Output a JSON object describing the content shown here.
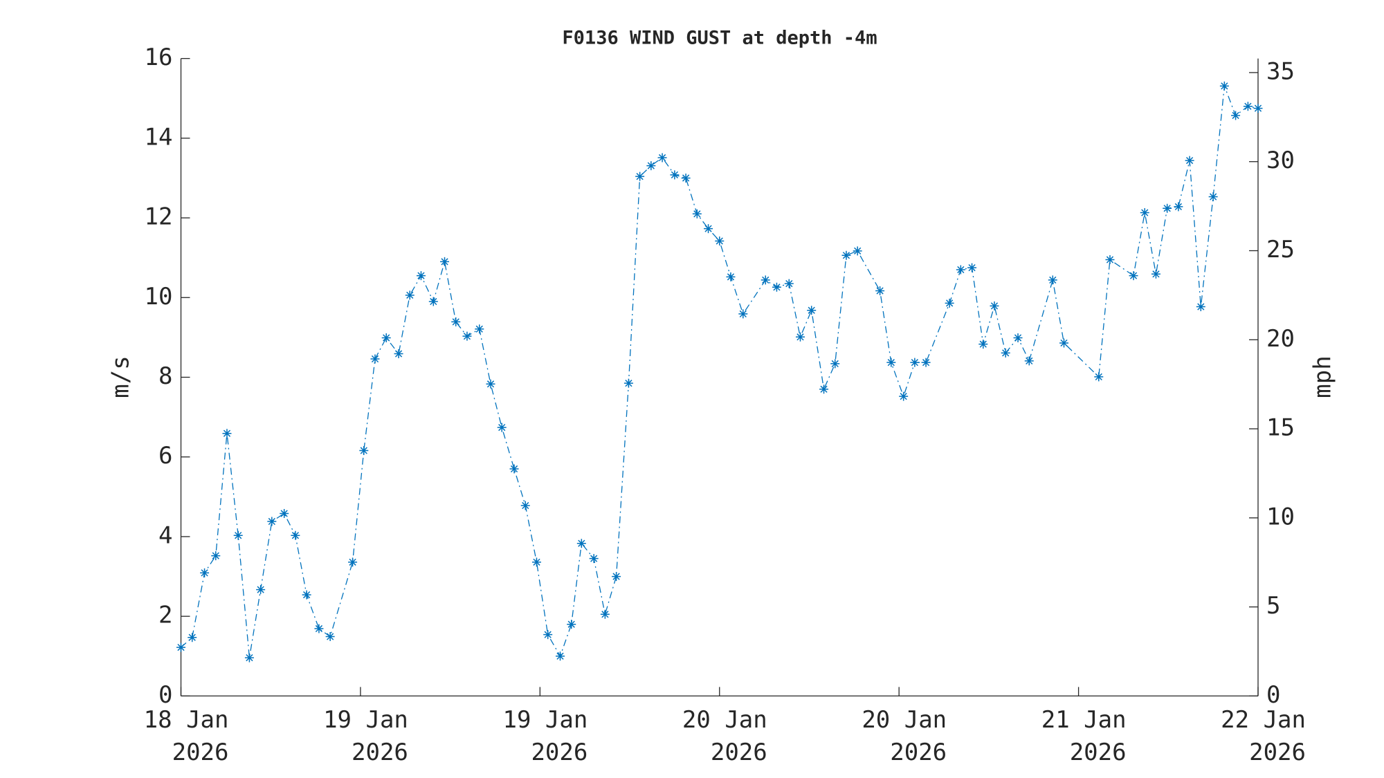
{
  "chart_data": {
    "type": "line",
    "title": "F0136 WIND GUST at depth -4m",
    "ylabel": "m/s",
    "y2label": "mph",
    "x": [
      0,
      1.0,
      2.1,
      3.1,
      4.1,
      5.1,
      6.1,
      7.1,
      8.1,
      9.2,
      10.2,
      11.2,
      12.3,
      13.3,
      15.3,
      16.3,
      17.3,
      18.3,
      19.4,
      20.4,
      21.4,
      22.5,
      23.5,
      24.5,
      25.5,
      26.6,
      27.6,
      28.6,
      29.7,
      30.7,
      31.7,
      32.7,
      33.8,
      34.8,
      35.7,
      36.8,
      37.8,
      38.8,
      39.9,
      40.9,
      41.9,
      42.9,
      44.0,
      45.0,
      46.0,
      47.0,
      48.0,
      49.0,
      50.1,
      52.1,
      53.1,
      54.2,
      55.2,
      56.2,
      57.3,
      58.3,
      59.3,
      60.3,
      62.3,
      63.3,
      64.4,
      65.4,
      66.4,
      68.5,
      69.5,
      70.5,
      71.5,
      72.5,
      73.5,
      74.6,
      75.6,
      77.7,
      78.7,
      81.8,
      82.8,
      84.9,
      85.9,
      86.9,
      87.9,
      88.9,
      89.9,
      90.9,
      92.0,
      93.0,
      94.0,
      95.1,
      96
    ],
    "series": [
      {
        "name": "wind gust",
        "color": "#0072bd",
        "values": [
          1.22,
          1.47,
          3.09,
          3.52,
          6.59,
          4.03,
          0.96,
          2.67,
          4.38,
          4.58,
          4.03,
          2.54,
          1.69,
          1.49,
          3.36,
          6.16,
          8.46,
          8.99,
          8.59,
          10.06,
          10.55,
          9.9,
          10.9,
          9.39,
          9.03,
          9.21,
          7.83,
          6.74,
          5.7,
          4.78,
          3.36,
          1.54,
          1.0,
          1.8,
          3.83,
          3.45,
          2.05,
          3.0,
          7.85,
          13.04,
          13.31,
          13.51,
          13.08,
          13.0,
          12.1,
          11.73,
          11.42,
          10.52,
          9.59,
          10.44,
          10.26,
          10.35,
          9.01,
          9.68,
          7.7,
          8.34,
          11.06,
          11.17,
          10.17,
          8.37,
          7.52,
          8.37,
          8.37,
          9.86,
          10.7,
          10.75,
          8.83,
          9.79,
          8.61,
          8.99,
          8.41,
          10.44,
          8.86,
          8.01,
          10.95,
          10.55,
          12.13,
          10.59,
          12.24,
          12.28,
          13.44,
          9.77,
          12.53,
          15.31,
          14.57,
          14.8,
          14.75
        ]
      }
    ],
    "xlim": [
      0,
      96
    ],
    "xticks": [
      {
        "value": 0,
        "label": "18 Jan 2026"
      },
      {
        "value": 16,
        "label": "19 Jan 2026"
      },
      {
        "value": 32,
        "label": "19 Jan 2026"
      },
      {
        "value": 48,
        "label": "20 Jan 2026"
      },
      {
        "value": 64,
        "label": "20 Jan 2026"
      },
      {
        "value": 80,
        "label": "21 Jan 2026"
      },
      {
        "value": 96,
        "label": "22 Jan 2026"
      }
    ],
    "ylim": [
      0,
      16
    ],
    "yticks": [
      0,
      2,
      4,
      6,
      8,
      10,
      12,
      14,
      16
    ],
    "y2lim": [
      0,
      35.79
    ],
    "y2ticks": [
      0,
      5,
      10,
      15,
      20,
      25,
      30,
      35
    ],
    "grid": false
  }
}
